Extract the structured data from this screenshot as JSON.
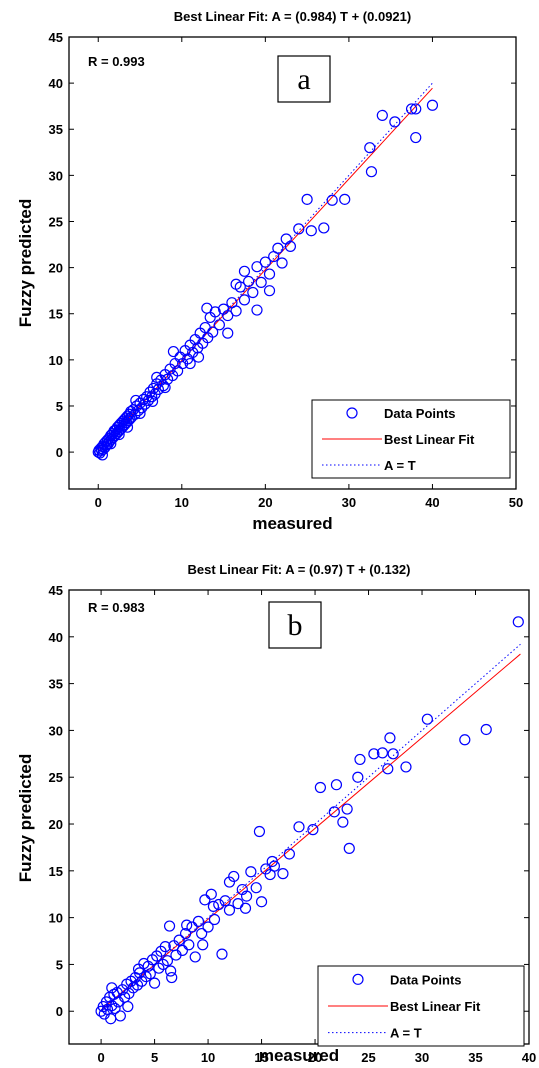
{
  "chart_data": [
    {
      "type": "scatter",
      "panel_label": "a",
      "title": "Best Linear Fit:  A = (0.984) T + (0.0921)",
      "xlabel": "measured",
      "ylabel": "Fuzzy predicted",
      "xlim": [
        -3.5,
        50
      ],
      "ylim": [
        -4,
        45
      ],
      "xticks": [
        0,
        10,
        20,
        30,
        40,
        50
      ],
      "yticks": [
        0,
        5,
        10,
        15,
        20,
        25,
        30,
        35,
        40,
        45
      ],
      "r_text": "R = 0.993",
      "fit": {
        "slope": 0.984,
        "intercept": 0.0921,
        "x_range": [
          0,
          40
        ],
        "color": "#ff0000"
      },
      "identity": {
        "x_range": [
          0,
          40
        ],
        "color": "#0000ff"
      },
      "legend": {
        "position": "bottom-right",
        "entries": [
          "Data Points",
          "Best Linear Fit",
          "A = T"
        ]
      },
      "marker_color": "#0000ff",
      "points": [
        [
          0,
          0
        ],
        [
          0.1,
          0.2
        ],
        [
          0.2,
          -0.1
        ],
        [
          0.3,
          0.4
        ],
        [
          0.4,
          0.2
        ],
        [
          0.5,
          0.6
        ],
        [
          0.6,
          0.3
        ],
        [
          0.7,
          0.9
        ],
        [
          0.8,
          0.5
        ],
        [
          0.9,
          1.1
        ],
        [
          1.0,
          0.8
        ],
        [
          1.1,
          1.3
        ],
        [
          1.2,
          0.9
        ],
        [
          1.3,
          1.5
        ],
        [
          1.4,
          1.2
        ],
        [
          1.5,
          1.8
        ],
        [
          1.6,
          1.4
        ],
        [
          1.7,
          2.0
        ],
        [
          1.8,
          1.6
        ],
        [
          1.9,
          2.3
        ],
        [
          2.0,
          1.8
        ],
        [
          2.1,
          2.4
        ],
        [
          2.2,
          2.0
        ],
        [
          2.3,
          2.7
        ],
        [
          2.4,
          2.2
        ],
        [
          2.5,
          2.9
        ],
        [
          2.6,
          2.4
        ],
        [
          2.7,
          3.1
        ],
        [
          2.8,
          2.6
        ],
        [
          2.9,
          3.3
        ],
        [
          3.0,
          2.8
        ],
        [
          3.1,
          3.5
        ],
        [
          3.2,
          3.0
        ],
        [
          3.3,
          3.7
        ],
        [
          3.4,
          3.2
        ],
        [
          3.5,
          3.9
        ],
        [
          3.6,
          3.4
        ],
        [
          3.7,
          4.1
        ],
        [
          3.8,
          3.6
        ],
        [
          3.9,
          4.4
        ],
        [
          4.0,
          3.8
        ],
        [
          4.2,
          4.6
        ],
        [
          4.4,
          4.1
        ],
        [
          4.6,
          5.0
        ],
        [
          4.8,
          4.5
        ],
        [
          5.0,
          5.3
        ],
        [
          5.2,
          4.8
        ],
        [
          5.4,
          5.7
        ],
        [
          5.6,
          5.2
        ],
        [
          5.8,
          6.0
        ],
        [
          6.0,
          5.6
        ],
        [
          6.2,
          6.5
        ],
        [
          6.4,
          6.0
        ],
        [
          6.6,
          6.9
        ],
        [
          6.8,
          6.3
        ],
        [
          7.0,
          7.4
        ],
        [
          7.2,
          6.8
        ],
        [
          7.5,
          7.8
        ],
        [
          7.8,
          7.2
        ],
        [
          8.0,
          8.4
        ],
        [
          8.3,
          7.9
        ],
        [
          8.6,
          9.0
        ],
        [
          8.9,
          8.3
        ],
        [
          9.2,
          9.6
        ],
        [
          9.5,
          8.8
        ],
        [
          9.8,
          10.3
        ],
        [
          10.1,
          9.6
        ],
        [
          10.4,
          11.0
        ],
        [
          10.7,
          10.1
        ],
        [
          11.0,
          11.6
        ],
        [
          11.3,
          10.8
        ],
        [
          11.6,
          12.2
        ],
        [
          11.9,
          11.3
        ],
        [
          12.2,
          12.9
        ],
        [
          12.5,
          11.8
        ],
        [
          12.8,
          13.5
        ],
        [
          13.1,
          12.4
        ],
        [
          13.4,
          14.6
        ],
        [
          13.7,
          13.0
        ],
        [
          14.0,
          15.2
        ],
        [
          14.5,
          13.8
        ],
        [
          15.0,
          15.5
        ],
        [
          15.5,
          14.8
        ],
        [
          16.0,
          16.2
        ],
        [
          16.5,
          15.3
        ],
        [
          17.0,
          17.9
        ],
        [
          17.5,
          16.5
        ],
        [
          18.0,
          18.5
        ],
        [
          18.5,
          17.3
        ],
        [
          19.0,
          20.1
        ],
        [
          19.5,
          18.4
        ],
        [
          20.0,
          20.6
        ],
        [
          20.5,
          19.3
        ],
        [
          21.0,
          21.2
        ],
        [
          22.0,
          20.5
        ],
        [
          22.5,
          23.1
        ],
        [
          23.0,
          22.3
        ],
        [
          24.0,
          24.2
        ],
        [
          25.0,
          27.4
        ],
        [
          25.5,
          24.0
        ],
        [
          27.0,
          24.3
        ],
        [
          28.0,
          27.3
        ],
        [
          29.5,
          27.4
        ],
        [
          32.5,
          33.0
        ],
        [
          32.7,
          30.4
        ],
        [
          34.0,
          36.5
        ],
        [
          35.5,
          35.8
        ],
        [
          37.5,
          37.2
        ],
        [
          38.0,
          34.1
        ],
        [
          40.0,
          37.6
        ],
        [
          0.5,
          -0.3
        ],
        [
          1.5,
          0.9
        ],
        [
          2.5,
          1.9
        ],
        [
          3.5,
          2.7
        ],
        [
          5.0,
          4.2
        ],
        [
          6.5,
          5.5
        ],
        [
          8.0,
          7.0
        ],
        [
          12.0,
          10.3
        ],
        [
          15.5,
          12.9
        ],
        [
          17.5,
          19.6
        ],
        [
          19.0,
          15.4
        ],
        [
          21.5,
          22.1
        ],
        [
          38.0,
          37.2
        ],
        [
          13.0,
          15.6
        ],
        [
          9.0,
          10.9
        ],
        [
          7.0,
          8.1
        ],
        [
          4.5,
          5.6
        ],
        [
          11.0,
          9.6
        ],
        [
          16.5,
          18.2
        ],
        [
          20.5,
          17.5
        ]
      ]
    },
    {
      "type": "scatter",
      "panel_label": "b",
      "title": "Best Linear Fit:  A = (0.97) T + (0.132)",
      "xlabel": "measured",
      "ylabel": "Fuzzy predicted",
      "xlim": [
        -3,
        40
      ],
      "ylim": [
        -3.5,
        45
      ],
      "xticks": [
        0,
        5,
        10,
        15,
        20,
        25,
        30,
        35,
        40
      ],
      "yticks": [
        0,
        5,
        10,
        15,
        20,
        25,
        30,
        35,
        40,
        45
      ],
      "r_text": "R = 0.983",
      "fit": {
        "slope": 0.97,
        "intercept": 0.132,
        "x_range": [
          0,
          39.2
        ],
        "color": "#ff0000"
      },
      "identity": {
        "x_range": [
          0,
          39.2
        ],
        "color": "#0000ff"
      },
      "legend": {
        "position": "bottom-right",
        "entries": [
          "Data Points",
          "Best Linear Fit",
          "A = T"
        ]
      },
      "marker_color": "#0000ff",
      "points": [
        [
          0,
          0
        ],
        [
          0.2,
          0.5
        ],
        [
          0.3,
          -0.3
        ],
        [
          0.5,
          1.0
        ],
        [
          0.6,
          0.2
        ],
        [
          0.8,
          1.5
        ],
        [
          0.9,
          -0.8
        ],
        [
          1.0,
          0.6
        ],
        [
          1.2,
          1.8
        ],
        [
          1.3,
          0.3
        ],
        [
          1.5,
          2.0
        ],
        [
          1.6,
          1.0
        ],
        [
          1.8,
          -0.5
        ],
        [
          2.0,
          2.3
        ],
        [
          2.2,
          1.5
        ],
        [
          2.4,
          2.9
        ],
        [
          2.6,
          1.9
        ],
        [
          2.8,
          3.2
        ],
        [
          3.0,
          2.5
        ],
        [
          3.2,
          3.6
        ],
        [
          3.4,
          2.8
        ],
        [
          3.6,
          4.1
        ],
        [
          3.8,
          3.2
        ],
        [
          4.0,
          5.1
        ],
        [
          4.2,
          3.7
        ],
        [
          4.4,
          4.8
        ],
        [
          4.6,
          4.0
        ],
        [
          4.8,
          5.5
        ],
        [
          5.0,
          3.0
        ],
        [
          5.2,
          5.9
        ],
        [
          5.4,
          4.6
        ],
        [
          5.6,
          6.4
        ],
        [
          5.8,
          5.0
        ],
        [
          6.0,
          6.9
        ],
        [
          6.2,
          5.4
        ],
        [
          6.4,
          9.1
        ],
        [
          6.6,
          3.6
        ],
        [
          6.8,
          7.0
        ],
        [
          7.0,
          6.0
        ],
        [
          7.3,
          7.6
        ],
        [
          7.6,
          6.5
        ],
        [
          7.9,
          8.3
        ],
        [
          8.2,
          7.1
        ],
        [
          8.5,
          9.0
        ],
        [
          8.8,
          5.8
        ],
        [
          9.1,
          9.6
        ],
        [
          9.4,
          8.3
        ],
        [
          9.7,
          11.9
        ],
        [
          10.0,
          9.0
        ],
        [
          10.3,
          12.5
        ],
        [
          10.6,
          9.8
        ],
        [
          11.0,
          11.4
        ],
        [
          11.3,
          6.1
        ],
        [
          11.6,
          11.8
        ],
        [
          12.0,
          10.8
        ],
        [
          12.4,
          14.4
        ],
        [
          12.8,
          11.5
        ],
        [
          13.2,
          13.0
        ],
        [
          13.6,
          12.3
        ],
        [
          14.0,
          14.9
        ],
        [
          14.5,
          13.2
        ],
        [
          14.8,
          19.2
        ],
        [
          15.0,
          11.7
        ],
        [
          15.4,
          15.2
        ],
        [
          15.8,
          14.6
        ],
        [
          16.2,
          15.5
        ],
        [
          17.0,
          14.7
        ],
        [
          17.6,
          16.8
        ],
        [
          18.5,
          19.7
        ],
        [
          19.8,
          19.4
        ],
        [
          20.5,
          23.9
        ],
        [
          21.8,
          21.3
        ],
        [
          22.0,
          24.2
        ],
        [
          22.6,
          20.2
        ],
        [
          23.0,
          21.6
        ],
        [
          23.2,
          17.4
        ],
        [
          24.0,
          25.0
        ],
        [
          24.2,
          26.9
        ],
        [
          25.5,
          27.5
        ],
        [
          26.3,
          27.6
        ],
        [
          26.8,
          25.9
        ],
        [
          27.0,
          29.2
        ],
        [
          27.3,
          27.5
        ],
        [
          28.5,
          26.1
        ],
        [
          30.5,
          31.2
        ],
        [
          34.0,
          29.0
        ],
        [
          36.0,
          30.1
        ],
        [
          39.0,
          41.6
        ],
        [
          2.5,
          0.5
        ],
        [
          1.0,
          2.5
        ],
        [
          3.5,
          4.5
        ],
        [
          6.5,
          4.3
        ],
        [
          8.0,
          9.2
        ],
        [
          9.5,
          7.1
        ],
        [
          10.5,
          11.2
        ],
        [
          12.0,
          13.8
        ],
        [
          13.5,
          11.0
        ],
        [
          16.0,
          16.0
        ]
      ]
    }
  ]
}
